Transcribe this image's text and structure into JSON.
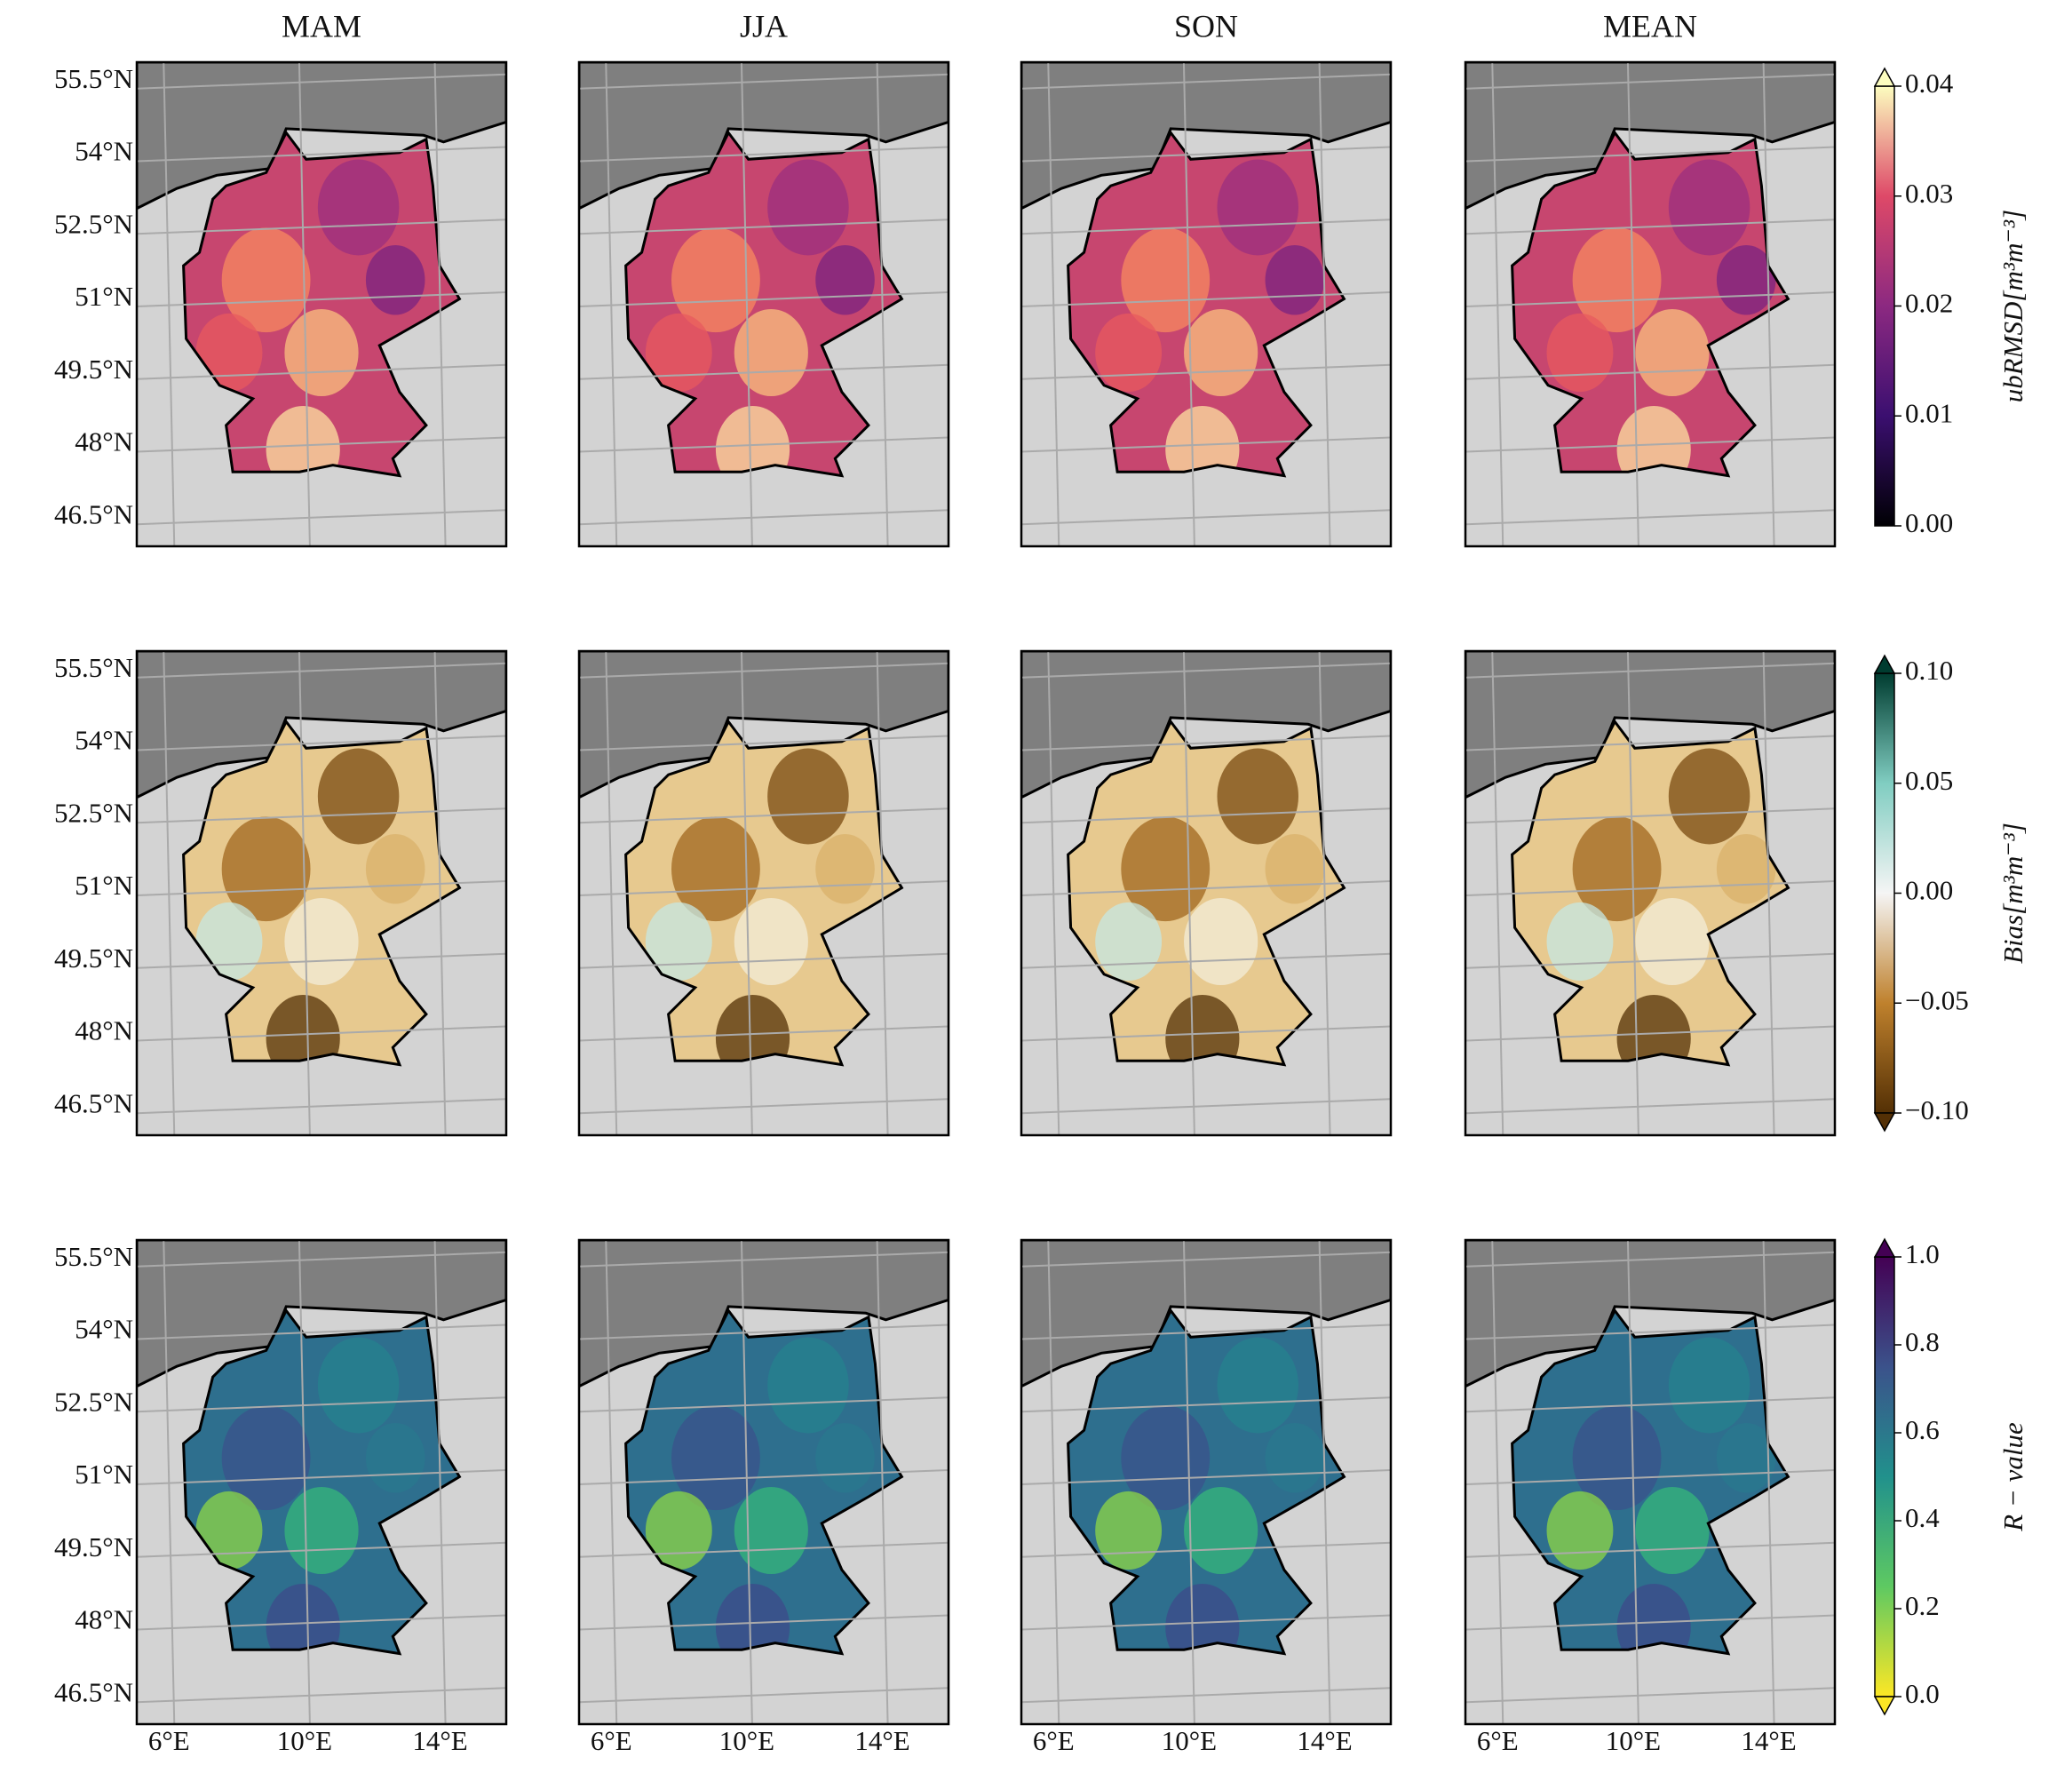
{
  "columns": [
    "MAM",
    "JJA",
    "SON",
    "MEAN"
  ],
  "map": {
    "latlim": [
      45.9,
      55.9
    ],
    "lonlim": [
      5.05,
      15.95
    ],
    "lat_ticks": [
      {
        "value": 55.5,
        "label": "55.5°N"
      },
      {
        "value": 54,
        "label": "54°N"
      },
      {
        "value": 52.5,
        "label": "52.5°N"
      },
      {
        "value": 51,
        "label": "51°N"
      },
      {
        "value": 49.5,
        "label": "49.5°N"
      },
      {
        "value": 48,
        "label": "48°N"
      },
      {
        "value": 46.5,
        "label": "46.5°N"
      }
    ],
    "lon_ticks": [
      {
        "value": 6,
        "label": "6°E"
      },
      {
        "value": 10,
        "label": "10°E"
      },
      {
        "value": 14,
        "label": "14°E"
      }
    ]
  },
  "rows": [
    {
      "colorbar": {
        "label": "ubRMSD[m³m⁻³]",
        "lim": [
          0,
          0.04
        ],
        "ticks": [
          {
            "value": 0,
            "label": "0.00"
          },
          0.01,
          0.02,
          0.03,
          0.04
        ]
      }
    },
    {
      "colorbar": {
        "label": "Bias[m³m⁻³]",
        "lim": [
          -0.1,
          0.1
        ],
        "ticks": [
          {
            "value": -0.1,
            "label": "−0.10"
          },
          {
            "value": -0.05,
            "label": "−0.05"
          },
          {
            "value": 0,
            "label": "0.00"
          },
          0.05,
          {
            "value": 0.1,
            "label": "0.10"
          }
        ]
      }
    },
    {
      "colorbar": {
        "label": "R − value",
        "lim": [
          0,
          1
        ],
        "ticks": [
          {
            "value": 0,
            "label": "0.0"
          },
          0.2,
          0.4,
          0.6,
          0.8,
          {
            "value": 1,
            "label": "1.0"
          }
        ]
      }
    }
  ]
}
